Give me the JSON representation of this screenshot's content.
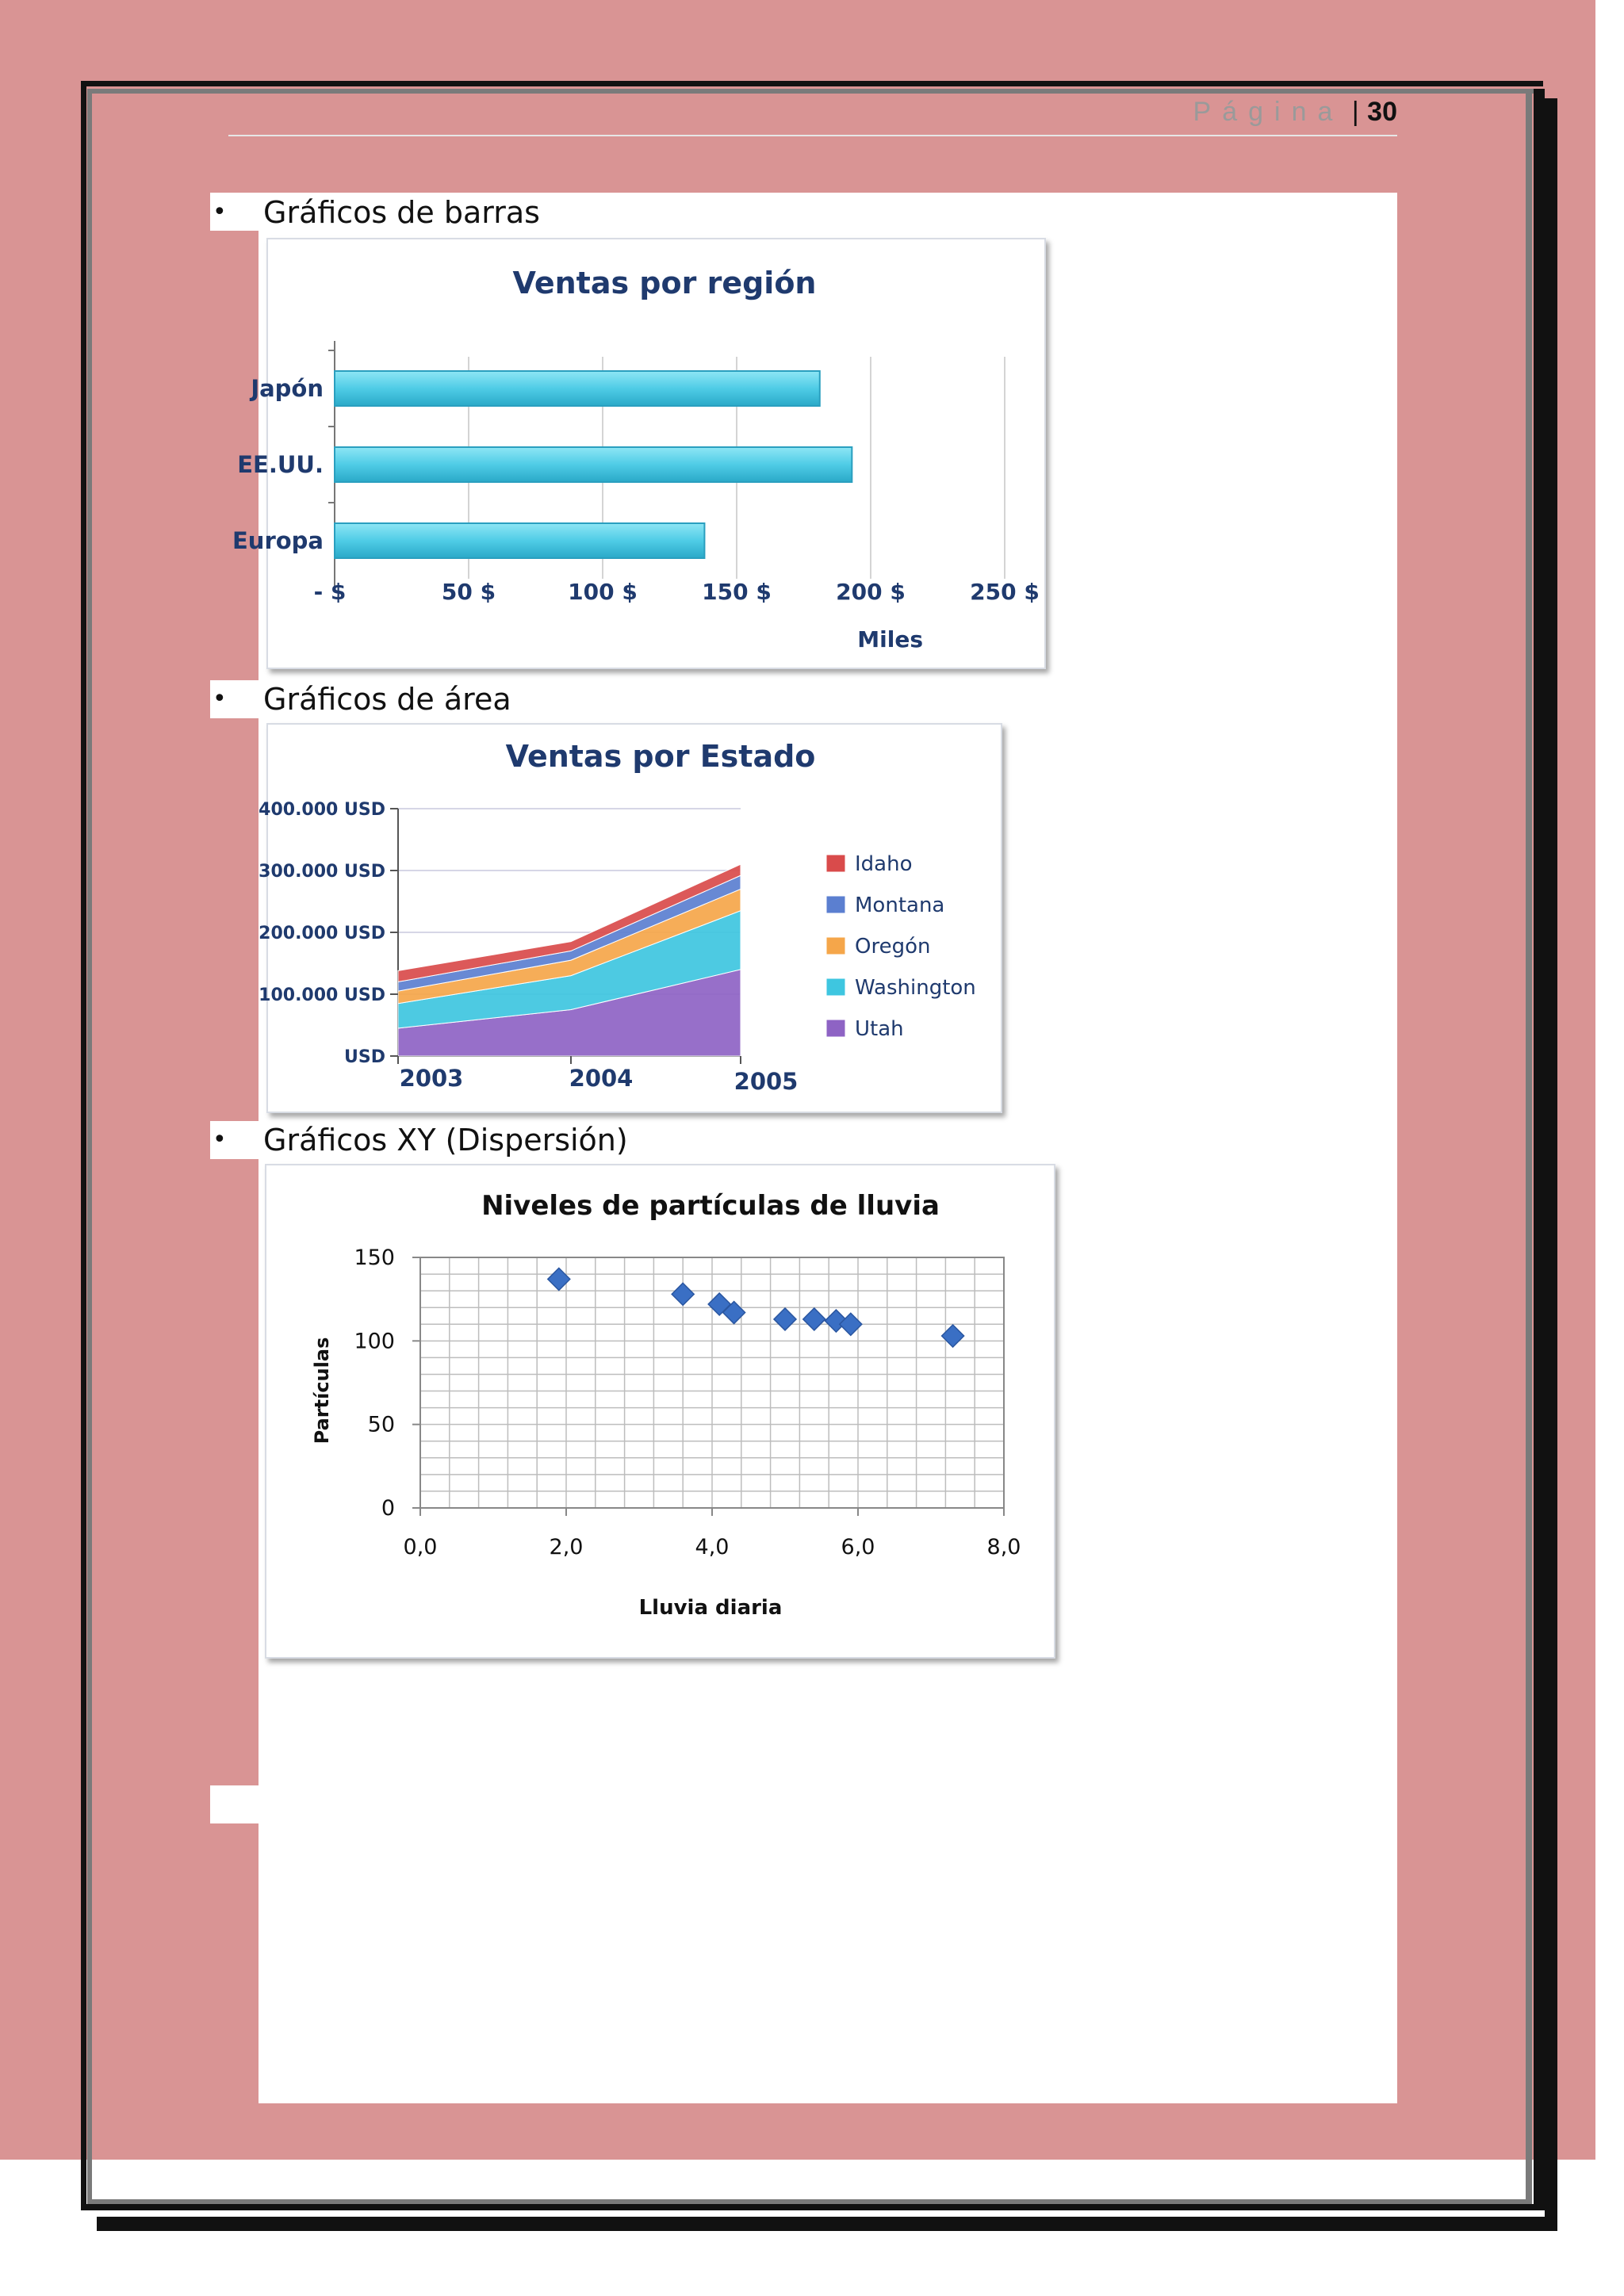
{
  "header": {
    "page_word": "Página",
    "separator": "|",
    "page_number": "30"
  },
  "sections": [
    {
      "label": "Gráficos de barras"
    },
    {
      "label": "Gráficos de área"
    },
    {
      "label": "Gráficos XY (Dispersión)"
    }
  ],
  "colors": {
    "page_frame": "#d99494",
    "bar_fill": "#4fcce6",
    "scatter_marker": "#3a6fc4",
    "chart_title": "#1f3a6e"
  },
  "chart_data": [
    {
      "type": "bar",
      "orientation": "horizontal",
      "title": "Ventas por región",
      "categories": [
        "Japón",
        "EE.UU.",
        "Europa"
      ],
      "values": [
        181,
        193,
        138
      ],
      "xlim": [
        0,
        250
      ],
      "tick_values": [
        0,
        50,
        100,
        150,
        200,
        250
      ],
      "tick_labels": [
        "- $",
        "50 $",
        "100 $",
        "150 $",
        "200 $",
        "250 $"
      ],
      "xlabel": "Miles",
      "ylabel": ""
    },
    {
      "type": "area",
      "stacked": true,
      "title": "Ventas por Estado",
      "categories": [
        "2003",
        "2004",
        "2005"
      ],
      "series": [
        {
          "name": "Utah",
          "color": "#8e63c4",
          "values": [
            45000,
            75000,
            140000
          ]
        },
        {
          "name": "Washington",
          "color": "#3ec6e0",
          "values": [
            40000,
            55000,
            95000
          ]
        },
        {
          "name": "Oregón",
          "color": "#f5a64a",
          "values": [
            20000,
            25000,
            35000
          ]
        },
        {
          "name": "Montana",
          "color": "#5b7fd0",
          "values": [
            15000,
            15000,
            22000
          ]
        },
        {
          "name": "Idaho",
          "color": "#d94b4b",
          "values": [
            18000,
            15000,
            18000
          ]
        }
      ],
      "legend_order": [
        "Idaho",
        "Montana",
        "Oregón",
        "Washington",
        "Utah"
      ],
      "ylim": [
        0,
        400000
      ],
      "y_tick_values": [
        0,
        100000,
        200000,
        300000,
        400000
      ],
      "y_tick_labels": [
        "USD",
        "100.000 USD",
        "200.000 USD",
        "300.000 USD",
        "400.000 USD"
      ],
      "legend_position": "right"
    },
    {
      "type": "scatter",
      "title": "Niveles de partículas de lluvia",
      "xlabel": "Lluvia diaria",
      "ylabel": "Partículas",
      "points": [
        {
          "x": 1.9,
          "y": 137
        },
        {
          "x": 3.6,
          "y": 128
        },
        {
          "x": 4.1,
          "y": 122
        },
        {
          "x": 4.3,
          "y": 117
        },
        {
          "x": 5.0,
          "y": 113
        },
        {
          "x": 5.4,
          "y": 113
        },
        {
          "x": 5.7,
          "y": 112
        },
        {
          "x": 5.9,
          "y": 110
        },
        {
          "x": 7.3,
          "y": 103
        }
      ],
      "xlim": [
        0,
        8
      ],
      "ylim": [
        0,
        150
      ],
      "x_tick_values": [
        0,
        2,
        4,
        6,
        8
      ],
      "x_tick_labels": [
        "0,0",
        "2,0",
        "4,0",
        "6,0",
        "8,0"
      ],
      "y_tick_values": [
        0,
        50,
        100,
        150
      ],
      "y_tick_labels": [
        "0",
        "50",
        "100",
        "150"
      ],
      "grid": true
    }
  ]
}
